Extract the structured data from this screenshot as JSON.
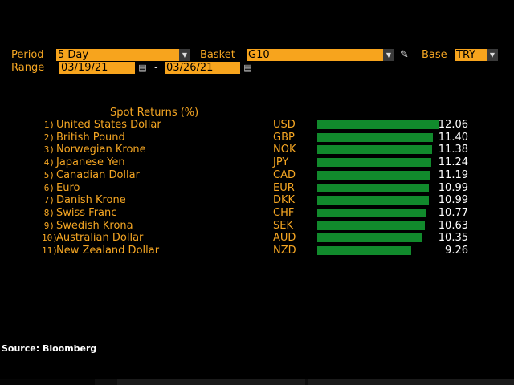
{
  "header": {
    "period_label": "Period",
    "period_value": "5 Day",
    "basket_label": "Basket",
    "basket_value": "G10",
    "base_label": "Base",
    "base_value": "TRY",
    "range_label": "Range",
    "range_start": "03/19/21",
    "range_sep": "-",
    "range_end": "03/26/21"
  },
  "chart_data": {
    "type": "bar",
    "title": "Spot Returns (%)",
    "ylim": [
      0,
      12.06
    ],
    "rows": [
      {
        "rank": "1)",
        "name": "United States Dollar",
        "code": "USD",
        "value": 12.06,
        "display": "12.06"
      },
      {
        "rank": "2)",
        "name": "British Pound",
        "code": "GBP",
        "value": 11.4,
        "display": "11.40"
      },
      {
        "rank": "3)",
        "name": "Norwegian Krone",
        "code": "NOK",
        "value": 11.38,
        "display": "11.38"
      },
      {
        "rank": "4)",
        "name": "Japanese Yen",
        "code": "JPY",
        "value": 11.24,
        "display": "11.24"
      },
      {
        "rank": "5)",
        "name": "Canadian Dollar",
        "code": "CAD",
        "value": 11.19,
        "display": "11.19"
      },
      {
        "rank": "6)",
        "name": "Euro",
        "code": "EUR",
        "value": 10.99,
        "display": "10.99"
      },
      {
        "rank": "7)",
        "name": "Danish Krone",
        "code": "DKK",
        "value": 10.99,
        "display": "10.99"
      },
      {
        "rank": "8)",
        "name": "Swiss Franc",
        "code": "CHF",
        "value": 10.77,
        "display": "10.77"
      },
      {
        "rank": "9)",
        "name": "Swedish Krona",
        "code": "SEK",
        "value": 10.63,
        "display": "10.63"
      },
      {
        "rank": "10)",
        "name": "Australian Dollar",
        "code": "AUD",
        "value": 10.35,
        "display": "10.35"
      },
      {
        "rank": "11)",
        "name": "New Zealand Dollar",
        "code": "NZD",
        "value": 9.26,
        "display": "9.26"
      }
    ]
  },
  "source": "Source: Bloomberg",
  "colors": {
    "accent": "#f7a41d",
    "bar": "#118a2c",
    "background": "#000000"
  },
  "icons": {
    "dropdown": "chevron-down-icon",
    "calendar": "calendar-icon",
    "edit": "pencil-icon"
  }
}
